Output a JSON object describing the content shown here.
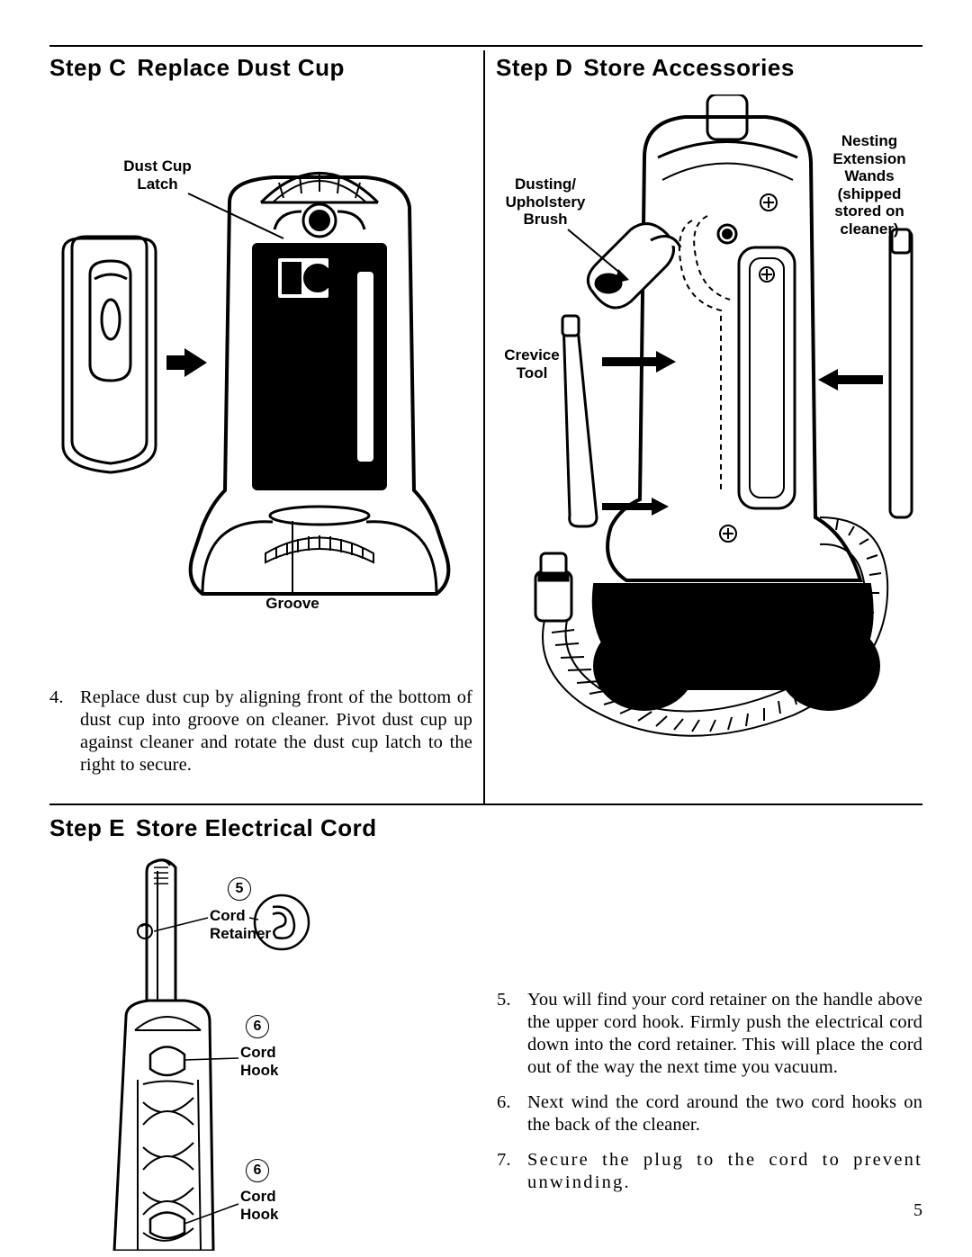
{
  "stepC": {
    "heading_prefix": "Step C",
    "heading_title": "Replace Dust Cup",
    "labels": {
      "dust_cup_latch": "Dust Cup\nLatch",
      "groove": "Groove"
    },
    "item_number": "4.",
    "item_text": "Replace dust cup by aligning front of the bottom of dust cup into groove on cleaner. Pivot dust cup up against cleaner and rotate the dust cup latch to the right to secure."
  },
  "stepD": {
    "heading_prefix": "Step D",
    "heading_title": "Store Accessories",
    "labels": {
      "dusting_brush": "Dusting/\nUpholstery\nBrush",
      "crevice_tool": "Crevice\nTool",
      "nesting_wands": "Nesting\nExtension\nWands\n(shipped\nstored on\ncleaner)"
    }
  },
  "stepE": {
    "heading_prefix": "Step E",
    "heading_title": "Store Electrical Cord",
    "labels": {
      "cord_retainer": "Cord\nRetainer",
      "cord_hook_1": "Cord\nHook",
      "cord_hook_2": "Cord\nHook",
      "num5": "5",
      "num6a": "6",
      "num6b": "6"
    },
    "items": [
      {
        "n": "5.",
        "t": "You will find your cord retainer on the handle above the upper cord hook. Firmly push the electrical cord down into the cord retainer. This will place the cord out of the way the next time you vacuum."
      },
      {
        "n": "6.",
        "t": "Next wind the cord around the two cord hooks on the back of the cleaner."
      },
      {
        "n": "7.",
        "t": "Secure the plug to the cord to prevent unwinding."
      }
    ]
  },
  "page_number": "5"
}
